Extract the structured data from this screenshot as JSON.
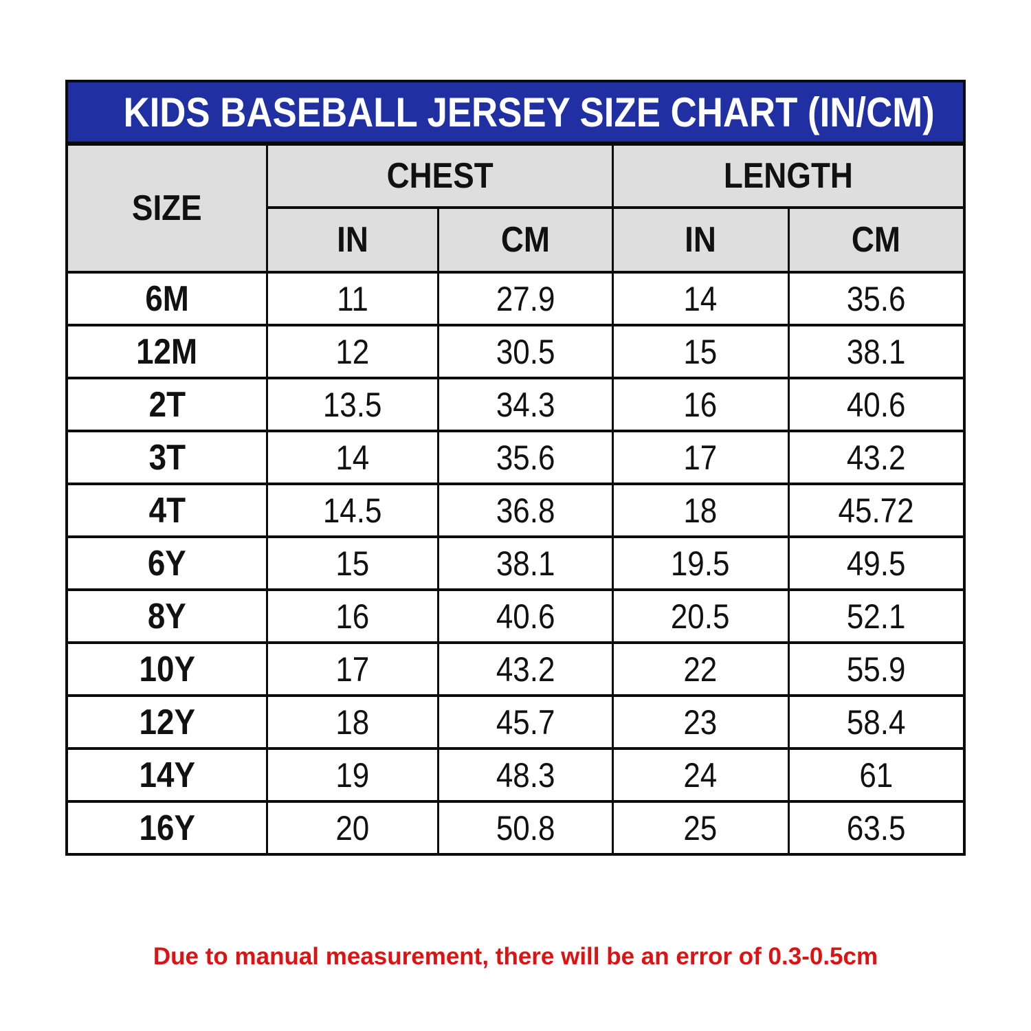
{
  "title": "KIDS BASEBALL JERSEY SIZE CHART (IN/CM)",
  "header": {
    "size": "SIZE",
    "chest": "CHEST",
    "length": "LENGTH",
    "in": "IN",
    "cm": "CM"
  },
  "footer_note": "Due to manual measurement, there will be an error of 0.3-0.5cm",
  "colors": {
    "title_bar_blue": "#2030a2",
    "header_gray": "#dedede",
    "border_black": "#0c0c0c",
    "note_red": "#de1212",
    "title_text": "#ffffff"
  },
  "chart_data": {
    "type": "table",
    "title": "KIDS BASEBALL JERSEY SIZE CHART (IN/CM)",
    "column_groups": [
      {
        "label": "SIZE",
        "span": 1
      },
      {
        "label": "CHEST",
        "span": 2
      },
      {
        "label": "LENGTH",
        "span": 2
      }
    ],
    "columns": [
      "SIZE",
      "CHEST IN",
      "CHEST CM",
      "LENGTH IN",
      "LENGTH CM"
    ],
    "rows": [
      [
        "6M",
        "11",
        "27.9",
        "14",
        "35.6"
      ],
      [
        "12M",
        "12",
        "30.5",
        "15",
        "38.1"
      ],
      [
        "2T",
        "13.5",
        "34.3",
        "16",
        "40.6"
      ],
      [
        "3T",
        "14",
        "35.6",
        "17",
        "43.2"
      ],
      [
        "4T",
        "14.5",
        "36.8",
        "18",
        "45.72"
      ],
      [
        "6Y",
        "15",
        "38.1",
        "19.5",
        "49.5"
      ],
      [
        "8Y",
        "16",
        "40.6",
        "20.5",
        "52.1"
      ],
      [
        "10Y",
        "17",
        "43.2",
        "22",
        "55.9"
      ],
      [
        "12Y",
        "18",
        "45.7",
        "23",
        "58.4"
      ],
      [
        "14Y",
        "19",
        "48.3",
        "24",
        "61"
      ],
      [
        "16Y",
        "20",
        "50.8",
        "25",
        "63.5"
      ]
    ],
    "footnote": "Due to manual measurement, there will be an error of 0.3-0.5cm"
  }
}
